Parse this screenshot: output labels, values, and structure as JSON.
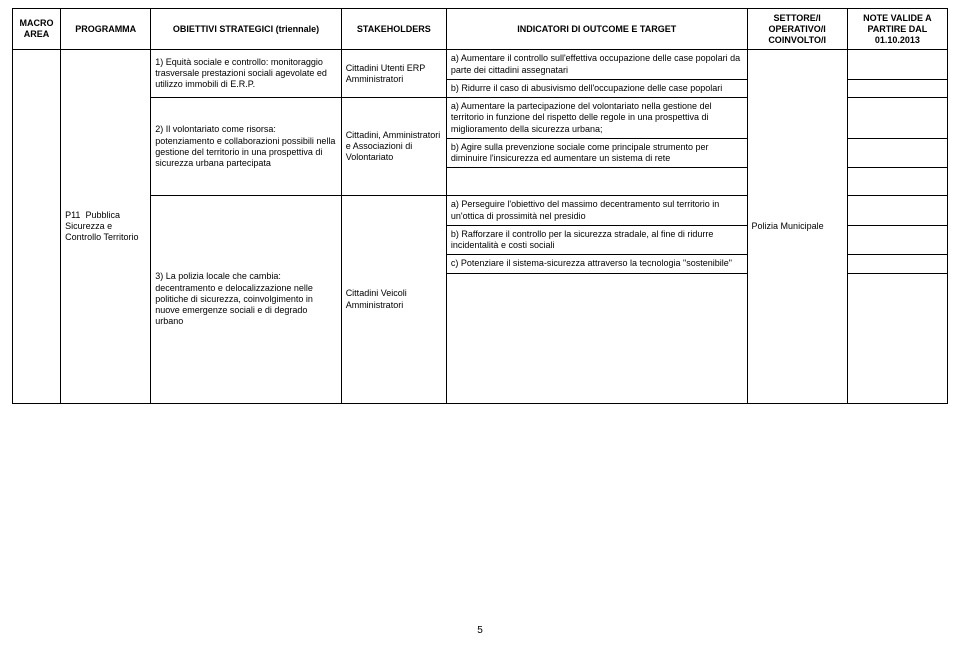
{
  "headers": {
    "macro": "MACRO AREA",
    "programma": "PROGRAMMA",
    "obiettivi": "OBIETTIVI STRATEGICI (triennale)",
    "stakeholders": "STAKEHOLDERS",
    "indicatori": "INDICATORI DI OUTCOME E TARGET",
    "settore": "SETTORE/I OPERATIVO/I COINVOLTO/I",
    "note": "NOTE VALIDE A PARTIRE DAL 01.10.2013"
  },
  "rows": {
    "r1": {
      "obj": "1) Equità sociale e controllo: monitoraggio trasversale prestazioni sociali agevolate ed utilizzo immobili di E.R.P.",
      "stake": "Cittadini Utenti ERP Amministratori",
      "ind_a": "a) Aumentare il controllo sull'effettiva occupazione delle case popolari da parte dei cittadini assegnatari",
      "ind_b": "b) Ridurre il caso di abusivismo dell'occupazione delle case popolari"
    },
    "r2": {
      "prog_code": "P11",
      "prog_name": "Pubblica Sicurezza e Controllo Territorio",
      "obj": "2) Il volontariato come risorsa: potenziamento e collaborazioni possibili nella gestione del territorio in una prospettiva di sicurezza urbana partecipata",
      "stake": "Cittadini, Amministratori e Associazioni di Volontariato",
      "ind_a": "a) Aumentare la partecipazione del volontariato nella gestione del territorio in funzione del rispetto delle regole in una prospettiva di miglioramento della sicurezza urbana;",
      "ind_b": "b) Agire sulla prevenzione sociale come principale strumento per diminuire l'insicurezza ed aumentare un sistema di rete",
      "sett": "Polizia Municipale"
    },
    "r3": {
      "obj": "3) La polizia locale che cambia: decentramento e delocalizzazione nelle politiche di sicurezza, coinvolgimento in nuove emergenze sociali e di degrado urbano",
      "stake": "Cittadini Veicoli Amministratori",
      "ind_a": "a) Perseguire l'obiettivo del massimo decentramento sul territorio in un'ottica di prossimità nel presidio",
      "ind_b": "b) Rafforzare il controllo per la sicurezza stradale, al fine di ridurre incidentalità e costi sociali",
      "ind_c": "c) Potenziare il sistema-sicurezza attraverso la tecnologia \"sostenibile\""
    }
  },
  "page_number": "5"
}
